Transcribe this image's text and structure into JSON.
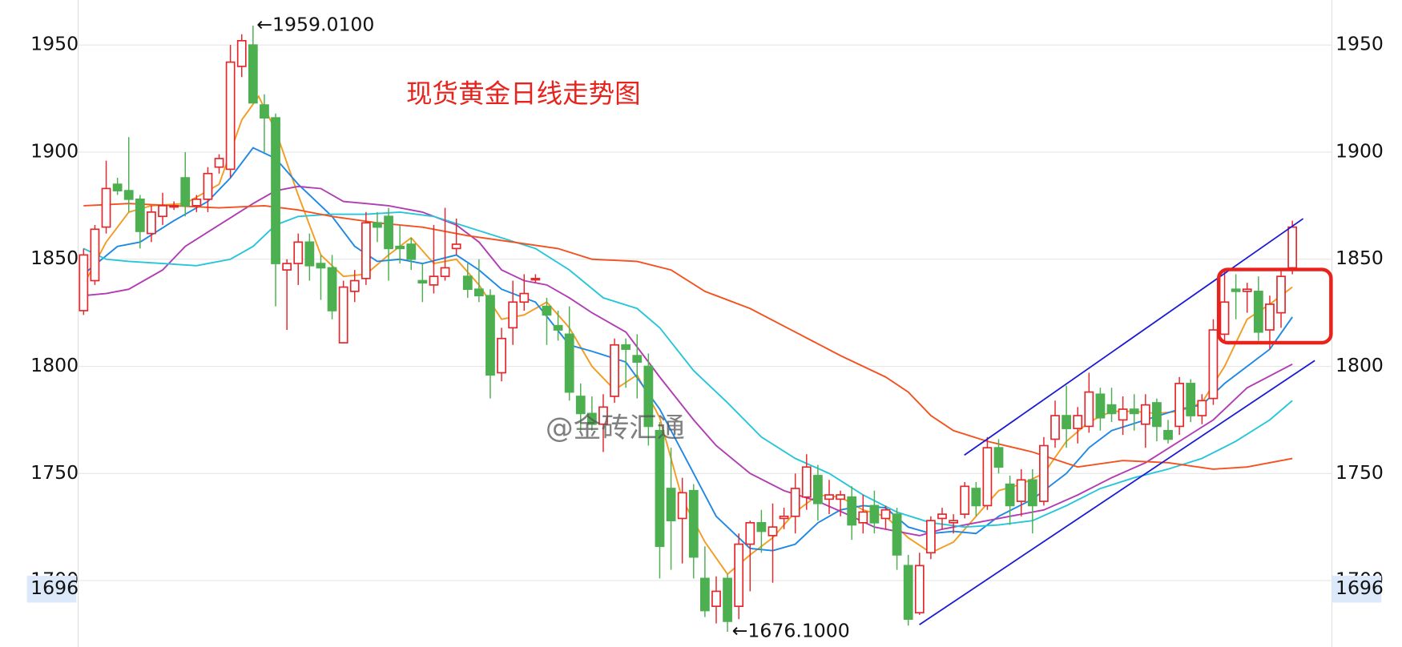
{
  "chart_data": {
    "type": "candlestick",
    "title": "现货黄金日线走势图",
    "watermark": "@金砖汇通",
    "high_label": "←1959.0100",
    "low_label": "←1676.1000",
    "price_marker": 1696,
    "ylim": [
      1669,
      1971
    ],
    "yticks": [
      1700,
      1750,
      1800,
      1850,
      1900,
      1950
    ],
    "grid": true,
    "up_color": "#e5262a",
    "down_color": "#4caf50",
    "open": [
      1826,
      1840,
      1865,
      1885,
      1882,
      1878,
      1862,
      1870,
      1875,
      1888,
      1875,
      1878,
      1893,
      1892,
      1940,
      1950,
      1922,
      1916,
      1845,
      1848,
      1858,
      1848,
      1846,
      1811,
      1835,
      1841,
      1867,
      1870,
      1856,
      1857,
      1840,
      1838,
      1842,
      1855,
      1842,
      1836,
      1833,
      1797,
      1818,
      1830,
      1841,
      1828,
      1819,
      1815,
      1786,
      1778,
      1773,
      1786,
      1810,
      1805,
      1800,
      1770,
      1743,
      1729,
      1742,
      1701,
      1688,
      1701,
      1688,
      1717,
      1727,
      1721,
      1729,
      1730,
      1739,
      1749,
      1738,
      1738,
      1739,
      1727,
      1735,
      1729,
      1731,
      1707,
      1685,
      1713,
      1729,
      1727,
      1731,
      1743,
      1735,
      1762,
      1745,
      1737,
      1747,
      1737,
      1766,
      1777,
      1771,
      1772,
      1787,
      1782,
      1775,
      1780,
      1773,
      1783,
      1770,
      1772,
      1792,
      1777,
      1785,
      1815,
      1836,
      1835,
      1835,
      1817,
      1825,
      1846
    ],
    "high": [
      1855,
      1866,
      1896,
      1888,
      1907,
      1880,
      1875,
      1881,
      1877,
      1900,
      1880,
      1893,
      1899,
      1950,
      1955,
      1959.01,
      1927,
      1918,
      1850,
      1862,
      1862,
      1852,
      1852,
      1840,
      1845,
      1872,
      1872,
      1874,
      1866,
      1860,
      1848,
      1866,
      1874,
      1869,
      1848,
      1850,
      1836,
      1818,
      1840,
      1843,
      1843,
      1832,
      1826,
      1828,
      1792,
      1786,
      1787,
      1813,
      1813,
      1815,
      1806,
      1774,
      1762,
      1748,
      1745,
      1716,
      1702,
      1703,
      1722,
      1728,
      1733,
      1736,
      1734,
      1750,
      1759,
      1754,
      1747,
      1742,
      1744,
      1740,
      1742,
      1735,
      1734,
      1712,
      1713,
      1730,
      1734,
      1731,
      1746,
      1746,
      1767,
      1766,
      1749,
      1752,
      1752,
      1767,
      1784,
      1791,
      1781,
      1797,
      1790,
      1790,
      1786,
      1787,
      1787,
      1785,
      1775,
      1795,
      1794,
      1787,
      1822,
      1845,
      1843,
      1839,
      1842,
      1833,
      1846,
      1868
    ],
    "low": [
      1824,
      1838,
      1862,
      1880,
      1872,
      1855,
      1858,
      1866,
      1873,
      1870,
      1872,
      1872,
      1890,
      1888,
      1935,
      1925,
      1900,
      1828,
      1817,
      1838,
      1840,
      1831,
      1822,
      1811,
      1830,
      1838,
      1858,
      1840,
      1848,
      1845,
      1830,
      1834,
      1840,
      1852,
      1832,
      1830,
      1785,
      1793,
      1810,
      1826,
      1839,
      1810,
      1812,
      1784,
      1770,
      1770,
      1760,
      1783,
      1790,
      1785,
      1763,
      1701,
      1705,
      1708,
      1701,
      1683,
      1680,
      1676.1,
      1682,
      1695,
      1713,
      1699,
      1724,
      1722,
      1733,
      1728,
      1731,
      1730,
      1719,
      1722,
      1722,
      1724,
      1705,
      1679,
      1684,
      1710,
      1724,
      1722,
      1729,
      1730,
      1733,
      1750,
      1726,
      1730,
      1722,
      1735,
      1762,
      1762,
      1764,
      1769,
      1770,
      1774,
      1768,
      1770,
      1762,
      1765,
      1764,
      1768,
      1774,
      1773,
      1782,
      1812,
      1822,
      1825,
      1812,
      1808,
      1818,
      1843
    ],
    "close": [
      1852,
      1864,
      1883,
      1882,
      1878,
      1863,
      1872,
      1875,
      1875,
      1875,
      1878,
      1890,
      1897,
      1942,
      1952,
      1923,
      1916,
      1848,
      1848,
      1858,
      1847,
      1846,
      1826,
      1837,
      1840,
      1867,
      1865,
      1855,
      1855,
      1850,
      1839,
      1842,
      1846,
      1857,
      1836,
      1833,
      1796,
      1813,
      1830,
      1834,
      1841,
      1824,
      1817,
      1788,
      1778,
      1773,
      1781,
      1810,
      1808,
      1802,
      1772,
      1716,
      1728,
      1741,
      1711,
      1686,
      1695,
      1681,
      1717,
      1727,
      1723,
      1725,
      1730,
      1743,
      1753,
      1736,
      1740,
      1740,
      1726,
      1732,
      1727,
      1733,
      1712,
      1682,
      1707,
      1728,
      1731,
      1728,
      1744,
      1735,
      1762,
      1753,
      1735,
      1747,
      1735,
      1763,
      1777,
      1771,
      1777,
      1788,
      1776,
      1778,
      1780,
      1778,
      1782,
      1772,
      1766,
      1792,
      1777,
      1784,
      1817,
      1830,
      1835,
      1836,
      1816,
      1829,
      1842,
      1865
    ],
    "series": [
      {
        "color": "#f39c1f",
        "x": [
          0,
          2,
          4,
          6,
          9,
          12,
          14,
          15.5,
          17,
          19,
          21,
          23,
          25,
          27,
          29,
          31,
          33,
          35,
          37,
          39,
          41,
          43,
          45,
          47,
          49,
          51,
          53,
          55,
          57,
          59,
          61,
          63,
          65,
          67,
          69,
          71,
          73,
          75,
          77,
          79,
          81,
          83,
          85,
          87,
          89,
          91,
          93,
          95,
          97,
          99,
          101,
          103,
          105,
          107
        ],
        "values": [
          1838,
          1858,
          1872,
          1875,
          1876,
          1885,
          1915,
          1926,
          1910,
          1880,
          1852,
          1842,
          1843,
          1852,
          1860,
          1848,
          1850,
          1838,
          1822,
          1824,
          1830,
          1818,
          1800,
          1789,
          1796,
          1776,
          1738,
          1718,
          1703,
          1712,
          1720,
          1732,
          1740,
          1739,
          1733,
          1730,
          1720,
          1713,
          1718,
          1730,
          1742,
          1745,
          1750,
          1765,
          1774,
          1779,
          1779,
          1778,
          1779,
          1783,
          1800,
          1822,
          1829,
          1837
        ]
      },
      {
        "color": "#1e88e5",
        "x": [
          0,
          3,
          5,
          8,
          11,
          13,
          15,
          17,
          19,
          22,
          24,
          26,
          28,
          30,
          33,
          35,
          37,
          40,
          43,
          45,
          48,
          51,
          54,
          56,
          59,
          61,
          63,
          65,
          67,
          69,
          71,
          73,
          75,
          77,
          79,
          81,
          84,
          87,
          89,
          91,
          94,
          97,
          99,
          101,
          103,
          105,
          107
        ],
        "values": [
          1843,
          1856,
          1858,
          1868,
          1877,
          1888,
          1902,
          1897,
          1885,
          1870,
          1856,
          1849,
          1850,
          1848,
          1852,
          1845,
          1836,
          1830,
          1810,
          1807,
          1802,
          1780,
          1750,
          1730,
          1715,
          1714,
          1717,
          1727,
          1733,
          1735,
          1734,
          1725,
          1722,
          1723,
          1722,
          1730,
          1738,
          1750,
          1762,
          1770,
          1775,
          1780,
          1782,
          1792,
          1800,
          1808,
          1823
        ]
      },
      {
        "color": "#b13cb3",
        "x": [
          0,
          2,
          4,
          7,
          9,
          12,
          15,
          17,
          19,
          21,
          23,
          25,
          27,
          30,
          33,
          35,
          37,
          39,
          41,
          43,
          45,
          48,
          51,
          54,
          56,
          59,
          62,
          65,
          68,
          70,
          72,
          74,
          76,
          79,
          82,
          85,
          88,
          91,
          94,
          97,
          100,
          103,
          107
        ],
        "values": [
          1833,
          1834,
          1836,
          1845,
          1856,
          1866,
          1876,
          1882,
          1884,
          1883,
          1877,
          1876,
          1875,
          1872,
          1866,
          1858,
          1845,
          1840,
          1838,
          1832,
          1825,
          1816,
          1795,
          1775,
          1763,
          1750,
          1742,
          1737,
          1730,
          1725,
          1723,
          1721,
          1724,
          1727,
          1730,
          1733,
          1740,
          1748,
          1755,
          1765,
          1775,
          1790,
          1801
        ]
      },
      {
        "color": "#26c6da",
        "x": [
          0,
          2,
          4,
          7,
          10,
          13,
          15,
          17,
          19,
          22,
          25,
          28,
          31,
          34,
          37,
          40,
          43,
          46,
          49,
          51,
          54,
          57,
          60,
          63,
          66,
          69,
          72,
          75,
          78,
          81,
          84,
          87,
          90,
          93,
          96,
          99,
          102,
          105,
          107
        ],
        "values": [
          1855,
          1850,
          1849,
          1848,
          1847,
          1850,
          1856,
          1866,
          1870,
          1871,
          1871,
          1872,
          1870,
          1865,
          1860,
          1855,
          1845,
          1832,
          1827,
          1818,
          1798,
          1783,
          1767,
          1757,
          1750,
          1740,
          1732,
          1727,
          1725,
          1726,
          1728,
          1735,
          1743,
          1748,
          1752,
          1757,
          1765,
          1775,
          1784
        ]
      },
      {
        "color": "#f4511e",
        "x": [
          0,
          4,
          8,
          12,
          16,
          19,
          22,
          26,
          30,
          34,
          38,
          42,
          45,
          49,
          52,
          55,
          59,
          63,
          67,
          71,
          73,
          75,
          77,
          80,
          84,
          88,
          92,
          96,
          100,
          103,
          107
        ],
        "values": [
          1875,
          1876,
          1875,
          1874,
          1875,
          1873,
          1870,
          1867,
          1865,
          1861,
          1858,
          1855,
          1850,
          1849,
          1845,
          1835,
          1827,
          1816,
          1805,
          1795,
          1788,
          1777,
          1770,
          1765,
          1760,
          1753,
          1756,
          1755,
          1752,
          1753,
          1757
        ]
      }
    ]
  }
}
